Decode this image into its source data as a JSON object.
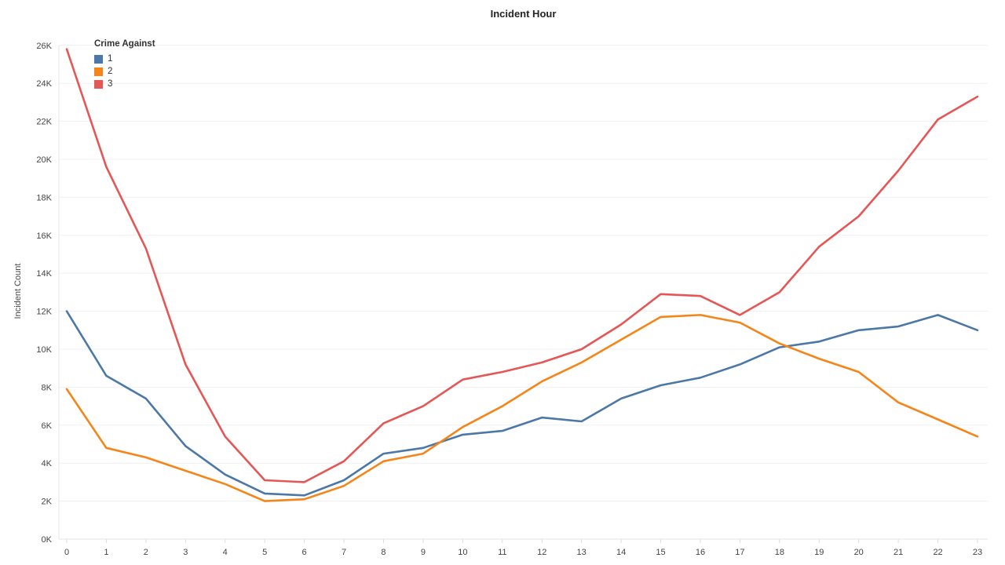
{
  "title": "Incident Hour",
  "y_axis": {
    "title": "Incident Count",
    "ticks": [
      "0K",
      "2K",
      "4K",
      "6K",
      "8K",
      "10K",
      "12K",
      "14K",
      "16K",
      "18K",
      "20K",
      "22K",
      "24K",
      "26K"
    ]
  },
  "x_axis": {
    "ticks": [
      "0",
      "1",
      "2",
      "3",
      "4",
      "5",
      "6",
      "7",
      "8",
      "9",
      "10",
      "11",
      "12",
      "13",
      "14",
      "15",
      "16",
      "17",
      "18",
      "19",
      "20",
      "21",
      "22",
      "23"
    ]
  },
  "legend": {
    "title": "Crime Against",
    "items": [
      {
        "label": "1",
        "color": "#4c78a8"
      },
      {
        "label": "2",
        "color": "#f58518"
      },
      {
        "label": "3",
        "color": "#e45756"
      }
    ]
  },
  "colors": {
    "gridline": "#f0f0f0",
    "axis_domain": "#e4e4e4",
    "tick_mark": "#dddddd",
    "tick_label": "#454545"
  },
  "chart_data": {
    "type": "line",
    "title": "Incident Hour",
    "xlabel": "",
    "ylabel": "Incident Count",
    "x": [
      0,
      1,
      2,
      3,
      4,
      5,
      6,
      7,
      8,
      9,
      10,
      11,
      12,
      13,
      14,
      15,
      16,
      17,
      18,
      19,
      20,
      21,
      22,
      23
    ],
    "ylim": [
      0,
      26000
    ],
    "y_tick_step": 2000,
    "grid": true,
    "legend_title": "Crime Against",
    "legend_position": "top-left-inside",
    "series": [
      {
        "name": "1",
        "color": "#4c78a8",
        "values": [
          12000,
          8600,
          7400,
          4900,
          3400,
          2400,
          2300,
          3100,
          4500,
          4800,
          5500,
          5700,
          6400,
          6200,
          7400,
          8100,
          8500,
          9200,
          10100,
          10400,
          11000,
          11200,
          11800,
          11000
        ]
      },
      {
        "name": "2",
        "color": "#f58518",
        "values": [
          7900,
          4800,
          4300,
          3600,
          2900,
          2000,
          2100,
          2800,
          4100,
          4500,
          5900,
          7000,
          8300,
          9300,
          10500,
          11700,
          11800,
          11400,
          10300,
          9500,
          8800,
          7200,
          6300,
          5400
        ]
      },
      {
        "name": "3",
        "color": "#e45756",
        "values": [
          25800,
          19600,
          15300,
          9200,
          5400,
          3100,
          3000,
          4100,
          6100,
          7000,
          8400,
          8800,
          9300,
          10000,
          11300,
          12900,
          12800,
          11800,
          13000,
          15400,
          17000,
          19400,
          22100,
          23300
        ]
      }
    ]
  }
}
